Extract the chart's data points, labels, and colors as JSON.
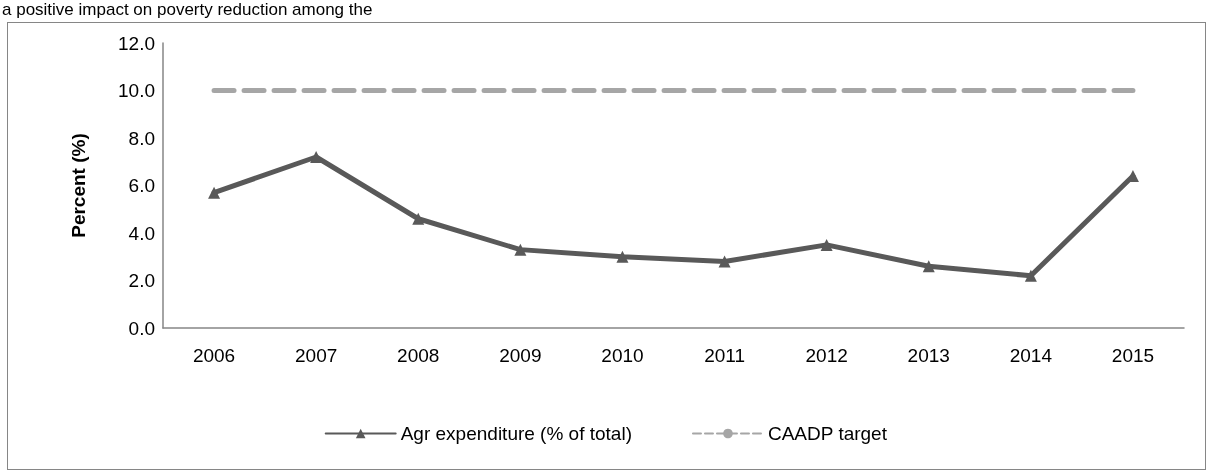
{
  "chart_data": {
    "type": "line",
    "annotations": [
      "a positive impact on poverty reduction among the"
    ],
    "ylabel": "Percent (%)",
    "categories": [
      "2006",
      "2007",
      "2008",
      "2009",
      "2010",
      "2011",
      "2012",
      "2013",
      "2014",
      "2015"
    ],
    "series": [
      {
        "name": "Agr expenditure (% of total)",
        "color": "#595959",
        "marker": "triangle",
        "line_style": "solid",
        "values": [
          5.7,
          7.2,
          4.6,
          3.3,
          3.0,
          2.8,
          3.5,
          2.6,
          2.2,
          6.4
        ]
      },
      {
        "name": "CAADP target",
        "color": "#a6a6a6",
        "marker": "none",
        "line_style": "dashed",
        "values": [
          10,
          10,
          10,
          10,
          10,
          10,
          10,
          10,
          10,
          10
        ]
      }
    ],
    "ylim": [
      0,
      12
    ],
    "yticks": [
      {
        "value": 0,
        "label": "0.0"
      },
      {
        "value": 2,
        "label": "2.0"
      },
      {
        "value": 4,
        "label": "4.0"
      },
      {
        "value": 6,
        "label": "6.0"
      },
      {
        "value": 8,
        "label": "8.0"
      },
      {
        "value": 10,
        "label": "10.0"
      },
      {
        "value": 12,
        "label": "12.0"
      }
    ],
    "grid": false,
    "legend": "bottom"
  }
}
